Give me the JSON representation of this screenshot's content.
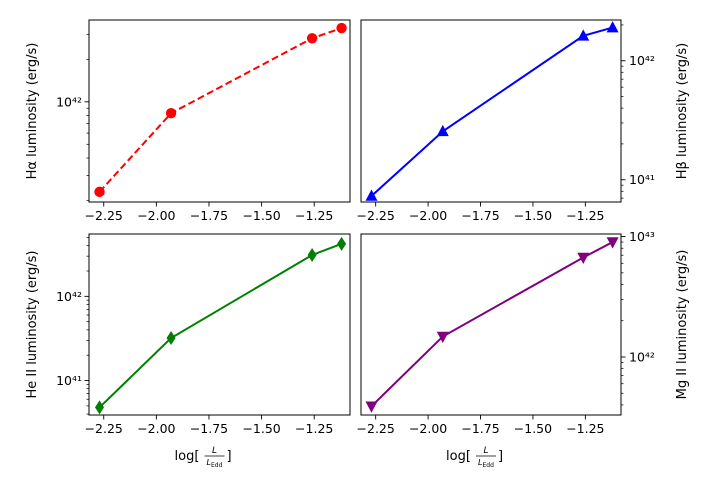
{
  "chart_data": [
    {
      "type": "line",
      "ylabel": "Hα luminosity (erg/s)",
      "xlabel": "",
      "yscale": "log",
      "y_axis_side": "left",
      "x": [
        -2.27,
        -1.93,
        -1.26,
        -1.12
      ],
      "values": [
        2.3e+41,
        8.3e+41,
        2.82e+42,
        3.33e+42
      ],
      "ylim": [
        1.95e+41,
        3.8e+42
      ],
      "xlim": [
        -2.32,
        -1.08
      ],
      "xticks": [
        "-2.25",
        "-2.00",
        "-1.75",
        "-1.50",
        "-1.25"
      ],
      "yticks": [
        "10^42"
      ],
      "color": "#ff0000",
      "marker": "circle",
      "linestyle": "dashed",
      "grid": false
    },
    {
      "type": "line",
      "ylabel": "Hβ luminosity (erg/s)",
      "xlabel": "",
      "yscale": "log",
      "y_axis_side": "right",
      "x": [
        -2.27,
        -1.93,
        -1.26,
        -1.12
      ],
      "values": [
        7.3e+40,
        2.55e+41,
        1.62e+42,
        1.9e+42
      ],
      "ylim": [
        6.5e+40,
        2.2e+42
      ],
      "xlim": [
        -2.32,
        -1.08
      ],
      "xticks": [
        "-2.25",
        "-2.00",
        "-1.75",
        "-1.50",
        "-1.25"
      ],
      "yticks": [
        "10^41",
        "10^42"
      ],
      "color": "#0000ff",
      "marker": "triangle-up",
      "linestyle": "solid",
      "grid": false
    },
    {
      "type": "line",
      "ylabel": "He II luminosity (erg/s)",
      "xlabel": "log[L/L_Edd]",
      "yscale": "log",
      "y_axis_side": "left",
      "x": [
        -2.27,
        -1.93,
        -1.26,
        -1.12
      ],
      "values": [
        4.8e+40,
        3.2e+41,
        3.1e+42,
        4.2e+42
      ],
      "ylim": [
        3.9e+40,
        5.5e+42
      ],
      "xlim": [
        -2.32,
        -1.08
      ],
      "xticks": [
        "-2.25",
        "-2.00",
        "-1.75",
        "-1.50",
        "-1.25"
      ],
      "yticks": [
        "10^41",
        "10^42"
      ],
      "color": "#008000",
      "marker": "diamond",
      "linestyle": "solid",
      "grid": false
    },
    {
      "type": "line",
      "ylabel": "Mg II luminosity (erg/s)",
      "xlabel": "log[L/L_Edd]",
      "yscale": "log",
      "y_axis_side": "right",
      "x": [
        -2.27,
        -1.93,
        -1.26,
        -1.12
      ],
      "values": [
        3.9e+41,
        1.48e+42,
        6.7e+42,
        9e+42
      ],
      "ylim": [
        3.3e+41,
        1.05e+43
      ],
      "xlim": [
        -2.32,
        -1.08
      ],
      "xticks": [
        "-2.25",
        "-2.00",
        "-1.75",
        "-1.50",
        "-1.25"
      ],
      "yticks": [
        "10^42",
        "10^43"
      ],
      "color": "#800080",
      "marker": "triangle-down",
      "linestyle": "solid",
      "grid": false
    }
  ]
}
